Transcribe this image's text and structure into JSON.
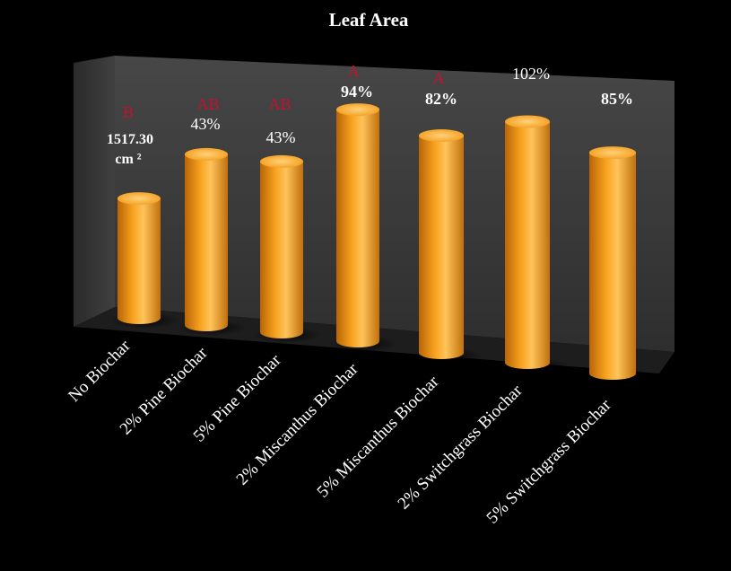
{
  "chart_data": {
    "type": "bar",
    "style": "3d-cylinder",
    "title": "Leaf Area",
    "xlabel": "",
    "ylabel": "",
    "categories": [
      "No Biochar",
      "2% Pine Biochar",
      "5% Pine Biochar",
      "2% Miscanthus Biochar",
      "5% Miscanthus Biochar",
      "2% Switchgrass Biochar",
      "5% Switchgrass Biochar"
    ],
    "series": [
      {
        "values": [
          1517.3,
          2170,
          2170,
          2944,
          2762,
          3065,
          2807
        ]
      }
    ],
    "baseline_label": [
      "1517.30",
      "cm ²"
    ],
    "percent_labels": [
      "",
      "43%",
      "43%",
      "94%",
      "82%",
      "102%",
      "85%"
    ],
    "significance_letters": [
      "B",
      "AB",
      "AB",
      "A",
      "A",
      "",
      ""
    ],
    "ylim": [
      0,
      3400
    ],
    "grid": false,
    "legend": "none"
  },
  "colors": {
    "background": "#000000",
    "bar": "#f7a11d",
    "bar_highlight": "#ffd27a",
    "bar_shadow": "#b86508",
    "panel": "#3c3c3c",
    "floor": "#1c1c1c",
    "letter": "#c8102e",
    "text": "#ffffff"
  }
}
